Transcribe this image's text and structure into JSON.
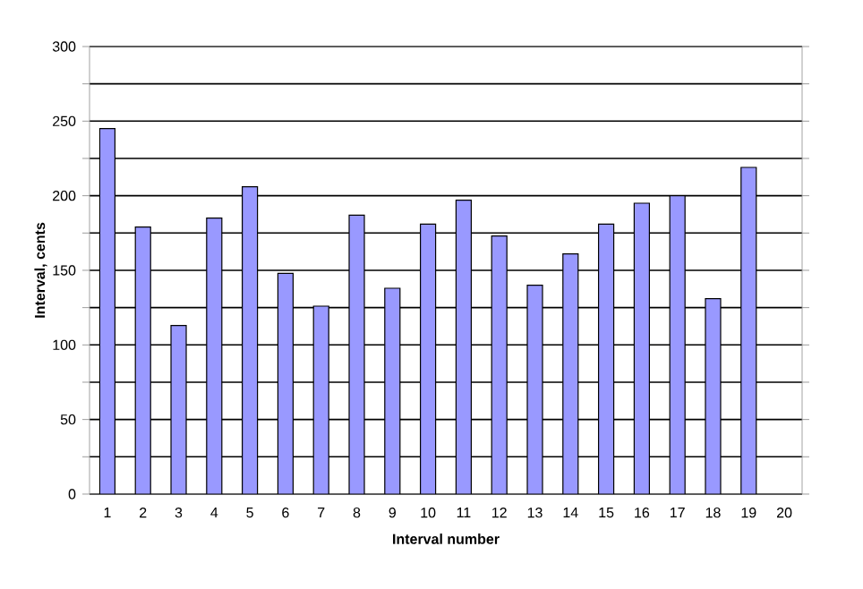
{
  "chart_data": {
    "type": "bar",
    "xlabel": "Interval number",
    "ylabel": "Interval, cents",
    "categories": [
      "1",
      "2",
      "3",
      "4",
      "5",
      "6",
      "7",
      "8",
      "9",
      "10",
      "11",
      "12",
      "13",
      "14",
      "15",
      "16",
      "17",
      "18",
      "19",
      "20"
    ],
    "values": [
      245,
      179,
      113,
      185,
      206,
      148,
      126,
      187,
      138,
      181,
      197,
      173,
      140,
      161,
      181,
      195,
      200,
      131,
      219,
      null
    ],
    "color": "#9999ff",
    "ylim": [
      0,
      300
    ],
    "yticks": [
      0,
      {
        "value": 25,
        "label": null
      },
      50,
      {
        "value": 75,
        "label": null
      },
      100,
      {
        "value": 125,
        "label": null
      },
      150,
      {
        "value": 175,
        "label": null
      },
      200,
      {
        "value": 225,
        "label": null
      },
      250,
      {
        "value": 275,
        "label": null
      },
      300
    ],
    "grid": "y"
  }
}
